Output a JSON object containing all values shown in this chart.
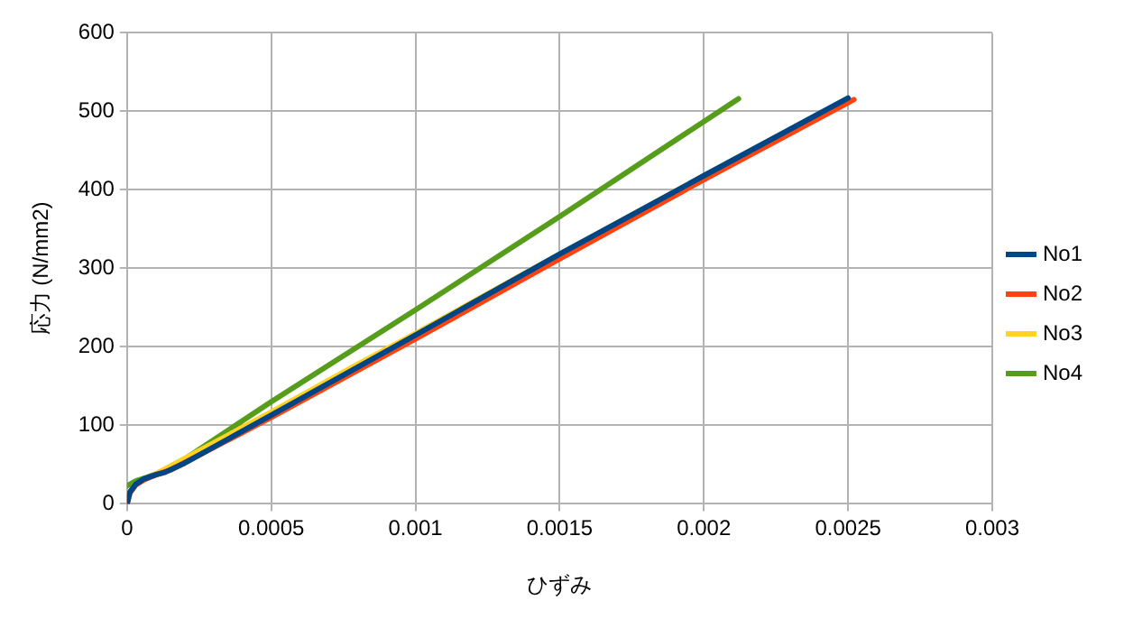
{
  "chart_data": {
    "type": "line",
    "xlabel": "ひずみ",
    "ylabel": "応力 (N/mm2)",
    "xlim": [
      0,
      0.003
    ],
    "xticks": [
      0,
      0.0005,
      0.001,
      0.0015,
      0.002,
      0.0025,
      0.003
    ],
    "ylim": [
      0,
      600
    ],
    "yticks": [
      0,
      100,
      200,
      300,
      400,
      500,
      600
    ],
    "grid": true,
    "legend": "right",
    "marker": "none",
    "line_style": "solid",
    "series": [
      {
        "name": "No1",
        "color": "#004586",
        "x": [
          0,
          1e-05,
          3e-05,
          6e-05,
          0.0001,
          0.00013,
          0.0002,
          0.0005,
          0.001,
          0.0015,
          0.002,
          0.0025
        ],
        "values": [
          0,
          15,
          25,
          32,
          37,
          40,
          52,
          113,
          215,
          318,
          418,
          517
        ]
      },
      {
        "name": "No2",
        "color": "#ff420e",
        "x": [
          0,
          1e-05,
          3e-05,
          6e-05,
          0.0001,
          0.00015,
          0.0005,
          0.001,
          0.0015,
          0.002,
          0.00252
        ],
        "values": [
          0,
          14,
          24,
          31,
          37,
          43,
          110,
          210,
          312,
          413,
          515
        ]
      },
      {
        "name": "No3",
        "color": "#ffd320",
        "x": [
          0,
          3e-05,
          0.0001,
          0.0005,
          0.0008,
          0.001,
          0.0015,
          0.002,
          0.0025
        ],
        "values": [
          10,
          25,
          38,
          117,
          178,
          217,
          318,
          418,
          516
        ]
      },
      {
        "name": "No4",
        "color": "#579d1c",
        "x": [
          0,
          3e-05,
          7e-05,
          0.0001,
          0.0002,
          0.0005,
          0.001,
          0.0015,
          0.002,
          0.00212
        ],
        "values": [
          23,
          29,
          34,
          38,
          57,
          130,
          247,
          366,
          487,
          516
        ]
      }
    ]
  }
}
